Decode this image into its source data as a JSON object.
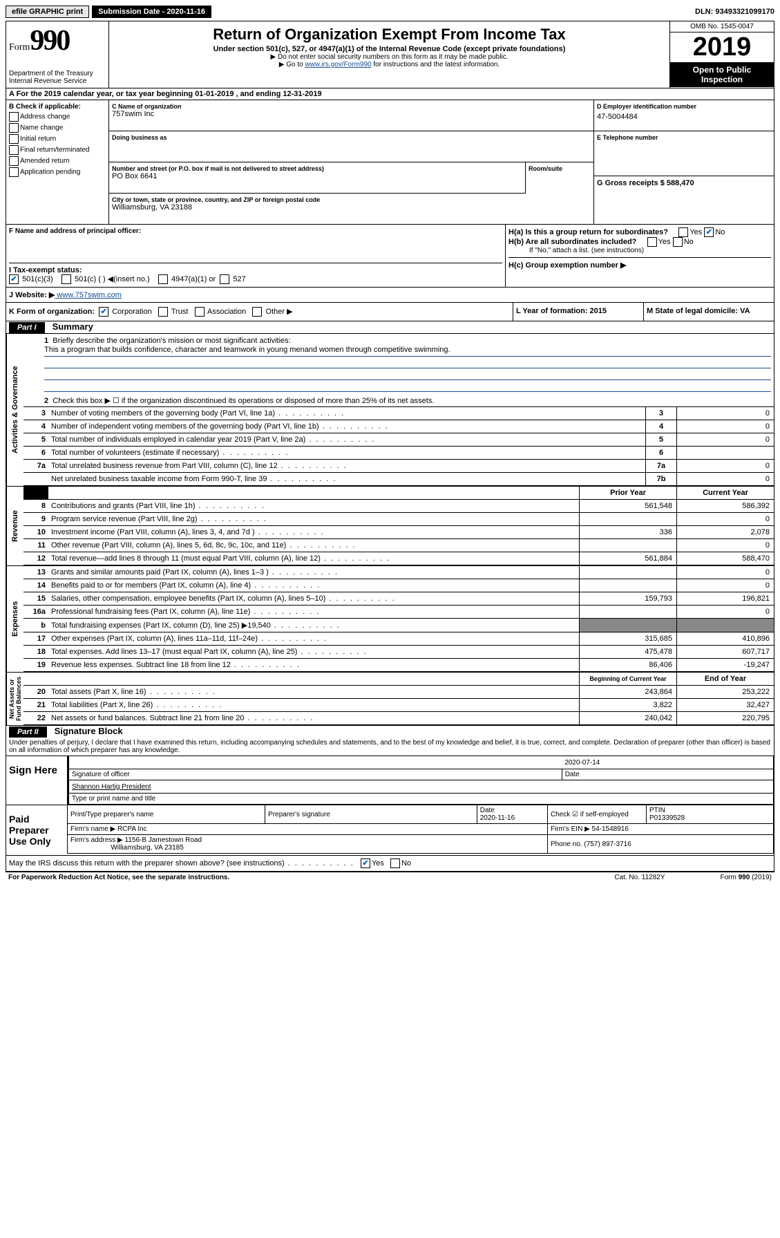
{
  "top": {
    "efile": "efile GRAPHIC print",
    "submission": "Submission Date - 2020-11-16",
    "dln": "DLN: 93493321099170"
  },
  "header": {
    "form_label": "Form",
    "form_num": "990",
    "dept": "Department of the Treasury",
    "irs": "Internal Revenue Service",
    "title": "Return of Organization Exempt From Income Tax",
    "subtitle": "Under section 501(c), 527, or 4947(a)(1) of the Internal Revenue Code (except private foundations)",
    "note1": "▶ Do not enter social security numbers on this form as it may be made public.",
    "note2_pre": "▶ Go to ",
    "note2_link": "www.irs.gov/Form990",
    "note2_post": " for instructions and the latest information.",
    "omb": "OMB No. 1545-0047",
    "year": "2019",
    "open": "Open to Public Inspection"
  },
  "row_a": "A For the 2019 calendar year, or tax year beginning 01-01-2019    , and ending 12-31-2019",
  "b": {
    "header": "B Check if applicable:",
    "items": [
      "Address change",
      "Name change",
      "Initial return",
      "Final return/terminated",
      "Amended return",
      "Application pending"
    ]
  },
  "c": {
    "name_label": "C Name of organization",
    "name": "757swim Inc",
    "dba_label": "Doing business as",
    "addr_label": "Number and street (or P.O. box if mail is not delivered to street address)",
    "addr": "PO Box 6641",
    "room_label": "Room/suite",
    "city_label": "City or town, state or province, country, and ZIP or foreign postal code",
    "city": "Williamsburg, VA  23188"
  },
  "d": {
    "label": "D Employer identification number",
    "value": "47-5004484"
  },
  "e": {
    "label": "E Telephone number",
    "value": ""
  },
  "g": {
    "label": "G Gross receipts $ 588,470"
  },
  "f": {
    "label": "F  Name and address of principal officer:"
  },
  "h": {
    "ha": "H(a)  Is this a group return for subordinates?",
    "hb": "H(b)  Are all subordinates included?",
    "note": "If \"No,\" attach a list. (see instructions)",
    "hc": "H(c)  Group exemption number ▶"
  },
  "i": {
    "label": "I  Tax-exempt status:",
    "opts": [
      "501(c)(3)",
      "501(c) (  ) ◀(insert no.)",
      "4947(a)(1) or",
      "527"
    ]
  },
  "j": {
    "label": "J  Website: ▶",
    "value": "  www.757swim.com"
  },
  "k": {
    "label": "K Form of organization:",
    "opts": [
      "Corporation",
      "Trust",
      "Association",
      "Other ▶"
    ],
    "l": "L Year of formation: 2015",
    "m": "M State of legal domicile: VA"
  },
  "part1": {
    "header": "Part I",
    "title": "Summary",
    "line1_label": "Briefly describe the organization's mission or most significant activities:",
    "line1_text": "This a program that builds confidence, character and teamwork in young menand women through competitive swimming.",
    "line2": "Check this box ▶ ☐  if the organization discontinued its operations or disposed of more than 25% of its net assets.",
    "lines_gov": [
      {
        "n": "3",
        "t": "Number of voting members of the governing body (Part VI, line 1a)",
        "box": "3",
        "v": "0"
      },
      {
        "n": "4",
        "t": "Number of independent voting members of the governing body (Part VI, line 1b)",
        "box": "4",
        "v": "0"
      },
      {
        "n": "5",
        "t": "Total number of individuals employed in calendar year 2019 (Part V, line 2a)",
        "box": "5",
        "v": "0"
      },
      {
        "n": "6",
        "t": "Total number of volunteers (estimate if necessary)",
        "box": "6",
        "v": ""
      },
      {
        "n": "7a",
        "t": "Total unrelated business revenue from Part VIII, column (C), line 12",
        "box": "7a",
        "v": "0"
      },
      {
        "n": "",
        "t": "Net unrelated business taxable income from Form 990-T, line 39",
        "box": "7b",
        "v": "0"
      }
    ],
    "rev_head_prior": "Prior Year",
    "rev_head_current": "Current Year",
    "lines_rev": [
      {
        "n": "8",
        "t": "Contributions and grants (Part VIII, line 1h)",
        "p": "561,548",
        "c": "586,392"
      },
      {
        "n": "9",
        "t": "Program service revenue (Part VIII, line 2g)",
        "p": "",
        "c": "0"
      },
      {
        "n": "10",
        "t": "Investment income (Part VIII, column (A), lines 3, 4, and 7d )",
        "p": "336",
        "c": "2,078"
      },
      {
        "n": "11",
        "t": "Other revenue (Part VIII, column (A), lines 5, 6d, 8c, 9c, 10c, and 11e)",
        "p": "",
        "c": "0"
      },
      {
        "n": "12",
        "t": "Total revenue—add lines 8 through 11 (must equal Part VIII, column (A), line 12)",
        "p": "561,884",
        "c": "588,470"
      }
    ],
    "lines_exp": [
      {
        "n": "13",
        "t": "Grants and similar amounts paid (Part IX, column (A), lines 1–3 )",
        "p": "",
        "c": "0"
      },
      {
        "n": "14",
        "t": "Benefits paid to or for members (Part IX, column (A), line 4)",
        "p": "",
        "c": "0"
      },
      {
        "n": "15",
        "t": "Salaries, other compensation, employee benefits (Part IX, column (A), lines 5–10)",
        "p": "159,793",
        "c": "196,821"
      },
      {
        "n": "16a",
        "t": "Professional fundraising fees (Part IX, column (A), line 11e)",
        "p": "",
        "c": "0"
      },
      {
        "n": "b",
        "t": "Total fundraising expenses (Part IX, column (D), line 25) ▶19,540",
        "p": "—",
        "c": "—"
      },
      {
        "n": "17",
        "t": "Other expenses (Part IX, column (A), lines 11a–11d, 11f–24e)",
        "p": "315,685",
        "c": "410,896"
      },
      {
        "n": "18",
        "t": "Total expenses. Add lines 13–17 (must equal Part IX, column (A), line 25)",
        "p": "475,478",
        "c": "607,717"
      },
      {
        "n": "19",
        "t": "Revenue less expenses. Subtract line 18 from line 12",
        "p": "86,406",
        "c": "-19,247"
      }
    ],
    "net_head_prior": "Beginning of Current Year",
    "net_head_current": "End of Year",
    "lines_net": [
      {
        "n": "20",
        "t": "Total assets (Part X, line 16)",
        "p": "243,864",
        "c": "253,222"
      },
      {
        "n": "21",
        "t": "Total liabilities (Part X, line 26)",
        "p": "3,822",
        "c": "32,427"
      },
      {
        "n": "22",
        "t": "Net assets or fund balances. Subtract line 21 from line 20",
        "p": "240,042",
        "c": "220,795"
      }
    ]
  },
  "part2": {
    "header": "Part II",
    "title": "Signature Block",
    "perjury": "Under penalties of perjury, I declare that I have examined this return, including accompanying schedules and statements, and to the best of my knowledge and belief, it is true, correct, and complete. Declaration of preparer (other than officer) is based on all information of which preparer has any knowledge.",
    "sign_here": "Sign Here",
    "sig_officer": "Signature of officer",
    "sig_date": "2020-07-14",
    "date_label": "Date",
    "name_title": "Shannon Hartig  President",
    "name_title_label": "Type or print name and title",
    "paid": "Paid Preparer Use Only",
    "prep_name_label": "Print/Type preparer's name",
    "prep_sig_label": "Preparer's signature",
    "prep_date_label": "Date",
    "prep_date": "2020-11-16",
    "check_self": "Check ☑ if self-employed",
    "ptin_label": "PTIN",
    "ptin": "P01339528",
    "firm_name_label": "Firm's name    ▶",
    "firm_name": "RCPA Inc",
    "firm_ein_label": "Firm's EIN ▶",
    "firm_ein": "54-1548916",
    "firm_addr_label": "Firm's address ▶",
    "firm_addr": "1156-B Jamestown Road",
    "firm_addr2": "Williamsburg, VA  23185",
    "phone_label": "Phone no.",
    "phone": "(757) 897-3716",
    "discuss": "May the IRS discuss this return with the preparer shown above? (see instructions)",
    "yes": "Yes",
    "no": "No"
  },
  "footer": {
    "left": "For Paperwork Reduction Act Notice, see the separate instructions.",
    "center": "Cat. No. 11282Y",
    "right": "Form 990 (2019)"
  }
}
